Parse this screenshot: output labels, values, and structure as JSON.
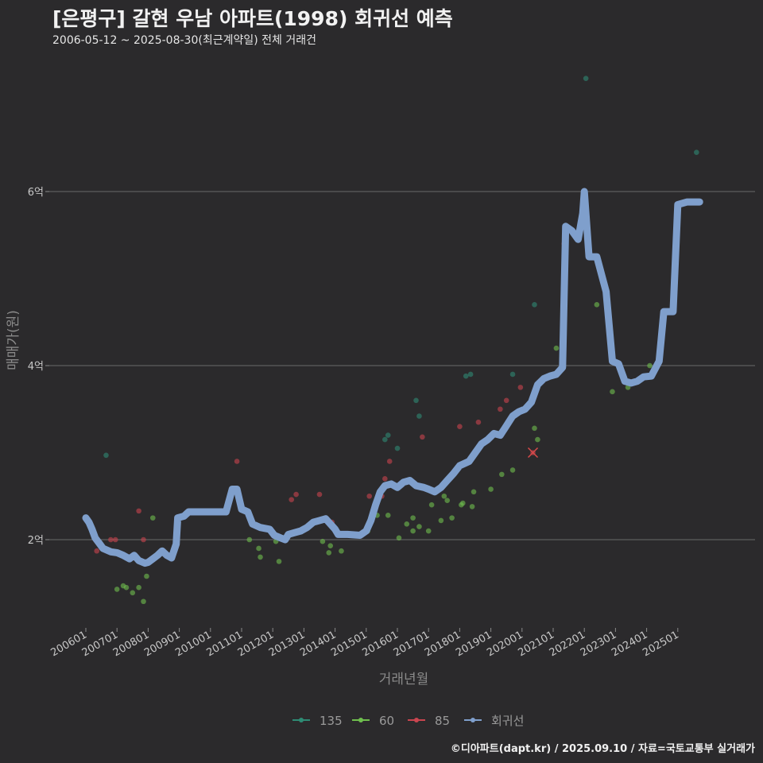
{
  "header": {
    "title": "[은평구] 갈현 우남 아파트(1998) 회귀선 예측",
    "subtitle": "2006-05-12 ~ 2025-08-30(최근계약일) 전체 거래건"
  },
  "footer": {
    "caption": "©디아파트(dapt.kr) / 2025.09.10 / 자료=국토교통부 실거래가"
  },
  "colors": {
    "background": "#2b2a2c",
    "grid": "#6a6a6a",
    "series_135": "#2e8b74",
    "series_60": "#6fbf4e",
    "series_85": "#c9454f",
    "regression": "#7f9fcc"
  },
  "chart_data": {
    "type": "scatter",
    "title": "[은평구] 갈현 우남 아파트(1998) 회귀선 예측",
    "subtitle": "2006-05-12 ~ 2025-08-30(최근계약일) 전체 거래건",
    "xlabel": "거래년월",
    "ylabel": "매매가(원)",
    "x_ticks": [
      "200601",
      "200701",
      "200801",
      "200901",
      "201001",
      "201101",
      "201201",
      "201301",
      "201401",
      "201501",
      "201601",
      "201701",
      "201801",
      "201901",
      "202001",
      "202101",
      "202201",
      "202301",
      "202401",
      "202501"
    ],
    "y_ticks": [
      {
        "value": 2,
        "label": "2억"
      },
      {
        "value": 4,
        "label": "4억"
      },
      {
        "value": 6,
        "label": "6억"
      }
    ],
    "y_unit": "억",
    "ylim": [
      1.0,
      7.5
    ],
    "grid": true,
    "legend_position": "bottom",
    "legend": [
      "135",
      "60",
      "85",
      "회귀선"
    ],
    "series": [
      {
        "name": "135",
        "points": [
          [
            2006.65,
            2.97
          ],
          [
            2015.6,
            3.15
          ],
          [
            2015.7,
            3.2
          ],
          [
            2016.0,
            3.05
          ],
          [
            2016.6,
            3.6
          ],
          [
            2016.7,
            3.42
          ],
          [
            2018.2,
            3.88
          ],
          [
            2018.35,
            3.9
          ],
          [
            2019.7,
            3.9
          ],
          [
            2020.4,
            4.7
          ],
          [
            2022.05,
            7.3
          ],
          [
            2025.6,
            6.45
          ]
        ]
      },
      {
        "name": "60",
        "points": [
          [
            2007.0,
            1.43
          ],
          [
            2007.2,
            1.47
          ],
          [
            2007.3,
            1.45
          ],
          [
            2007.5,
            1.39
          ],
          [
            2007.7,
            1.45
          ],
          [
            2007.85,
            1.29
          ],
          [
            2007.95,
            1.58
          ],
          [
            2008.15,
            2.25
          ],
          [
            2008.25,
            1.82
          ],
          [
            2011.25,
            2.0
          ],
          [
            2011.55,
            1.9
          ],
          [
            2011.6,
            1.8
          ],
          [
            2012.1,
            1.98
          ],
          [
            2012.2,
            1.75
          ],
          [
            2013.6,
            1.98
          ],
          [
            2013.8,
            1.85
          ],
          [
            2013.85,
            1.93
          ],
          [
            2014.2,
            1.87
          ],
          [
            2015.05,
            2.1
          ],
          [
            2015.35,
            2.28
          ],
          [
            2015.7,
            2.28
          ],
          [
            2016.05,
            2.02
          ],
          [
            2016.3,
            2.18
          ],
          [
            2016.5,
            2.25
          ],
          [
            2016.5,
            2.1
          ],
          [
            2016.7,
            2.15
          ],
          [
            2017.0,
            2.1
          ],
          [
            2017.1,
            2.4
          ],
          [
            2017.4,
            2.22
          ],
          [
            2017.5,
            2.5
          ],
          [
            2017.6,
            2.45
          ],
          [
            2017.75,
            2.25
          ],
          [
            2018.05,
            2.4
          ],
          [
            2018.1,
            2.42
          ],
          [
            2018.4,
            2.38
          ],
          [
            2018.45,
            2.55
          ],
          [
            2019.0,
            2.58
          ],
          [
            2019.35,
            2.75
          ],
          [
            2019.7,
            2.8
          ],
          [
            2020.4,
            3.28
          ],
          [
            2020.5,
            3.15
          ],
          [
            2021.1,
            4.2
          ],
          [
            2022.4,
            4.7
          ],
          [
            2022.9,
            3.7
          ],
          [
            2023.4,
            3.75
          ],
          [
            2024.1,
            4.0
          ]
        ]
      },
      {
        "name": "85",
        "points": [
          [
            2006.35,
            1.87
          ],
          [
            2006.8,
            2.0
          ],
          [
            2006.95,
            2.0
          ],
          [
            2007.7,
            2.33
          ],
          [
            2007.85,
            2.0
          ],
          [
            2010.85,
            2.9
          ],
          [
            2012.6,
            2.46
          ],
          [
            2012.75,
            2.52
          ],
          [
            2013.5,
            2.52
          ],
          [
            2013.9,
            2.2
          ],
          [
            2015.1,
            2.5
          ],
          [
            2015.5,
            2.5
          ],
          [
            2015.6,
            2.7
          ],
          [
            2015.75,
            2.9
          ],
          [
            2016.8,
            3.18
          ],
          [
            2018.0,
            3.3
          ],
          [
            2018.6,
            3.35
          ],
          [
            2019.3,
            3.5
          ],
          [
            2019.5,
            3.6
          ],
          [
            2019.95,
            3.75
          ],
          [
            2020.35,
            3.0
          ],
          [
            2021.35,
            5.4
          ],
          [
            2024.95,
            5.3
          ]
        ]
      },
      {
        "name": "회귀선",
        "points": [
          [
            2006.0,
            2.25
          ],
          [
            2006.1,
            2.2
          ],
          [
            2006.2,
            2.12
          ],
          [
            2006.3,
            2.02
          ],
          [
            2006.45,
            1.95
          ],
          [
            2006.55,
            1.9
          ],
          [
            2006.8,
            1.86
          ],
          [
            2007.0,
            1.85
          ],
          [
            2007.2,
            1.82
          ],
          [
            2007.4,
            1.78
          ],
          [
            2007.55,
            1.82
          ],
          [
            2007.7,
            1.76
          ],
          [
            2007.9,
            1.73
          ],
          [
            2008.0,
            1.74
          ],
          [
            2008.15,
            1.78
          ],
          [
            2008.3,
            1.82
          ],
          [
            2008.45,
            1.87
          ],
          [
            2008.6,
            1.82
          ],
          [
            2008.75,
            1.79
          ],
          [
            2008.9,
            1.95
          ],
          [
            2008.95,
            2.25
          ],
          [
            2009.15,
            2.27
          ],
          [
            2009.3,
            2.32
          ],
          [
            2009.6,
            2.32
          ],
          [
            2010.0,
            2.32
          ],
          [
            2010.5,
            2.32
          ],
          [
            2010.7,
            2.58
          ],
          [
            2010.85,
            2.58
          ],
          [
            2011.0,
            2.35
          ],
          [
            2011.2,
            2.32
          ],
          [
            2011.35,
            2.18
          ],
          [
            2011.6,
            2.14
          ],
          [
            2011.9,
            2.12
          ],
          [
            2012.05,
            2.05
          ],
          [
            2012.25,
            2.02
          ],
          [
            2012.4,
            2.0
          ],
          [
            2012.5,
            2.06
          ],
          [
            2012.7,
            2.08
          ],
          [
            2012.9,
            2.1
          ],
          [
            2013.1,
            2.14
          ],
          [
            2013.3,
            2.2
          ],
          [
            2013.5,
            2.22
          ],
          [
            2013.7,
            2.24
          ],
          [
            2014.0,
            2.12
          ],
          [
            2014.1,
            2.06
          ],
          [
            2014.4,
            2.06
          ],
          [
            2014.8,
            2.05
          ],
          [
            2015.0,
            2.1
          ],
          [
            2015.15,
            2.22
          ],
          [
            2015.3,
            2.4
          ],
          [
            2015.45,
            2.55
          ],
          [
            2015.6,
            2.62
          ],
          [
            2015.8,
            2.64
          ],
          [
            2016.0,
            2.6
          ],
          [
            2016.2,
            2.66
          ],
          [
            2016.4,
            2.68
          ],
          [
            2016.6,
            2.62
          ],
          [
            2016.85,
            2.6
          ],
          [
            2017.0,
            2.58
          ],
          [
            2017.2,
            2.55
          ],
          [
            2017.4,
            2.6
          ],
          [
            2017.6,
            2.68
          ],
          [
            2017.8,
            2.76
          ],
          [
            2018.0,
            2.85
          ],
          [
            2018.3,
            2.9
          ],
          [
            2018.5,
            3.0
          ],
          [
            2018.7,
            3.1
          ],
          [
            2018.9,
            3.15
          ],
          [
            2019.1,
            3.22
          ],
          [
            2019.3,
            3.2
          ],
          [
            2019.45,
            3.28
          ],
          [
            2019.7,
            3.42
          ],
          [
            2019.9,
            3.47
          ],
          [
            2020.1,
            3.5
          ],
          [
            2020.3,
            3.58
          ],
          [
            2020.5,
            3.78
          ],
          [
            2020.7,
            3.85
          ],
          [
            2020.9,
            3.88
          ],
          [
            2021.1,
            3.9
          ],
          [
            2021.3,
            3.98
          ],
          [
            2021.4,
            5.6
          ],
          [
            2021.6,
            5.55
          ],
          [
            2021.8,
            5.45
          ],
          [
            2021.95,
            5.75
          ],
          [
            2022.0,
            6.0
          ],
          [
            2022.15,
            5.25
          ],
          [
            2022.4,
            5.25
          ],
          [
            2022.7,
            4.85
          ],
          [
            2022.9,
            4.05
          ],
          [
            2023.1,
            4.02
          ],
          [
            2023.3,
            3.82
          ],
          [
            2023.5,
            3.8
          ],
          [
            2023.7,
            3.82
          ],
          [
            2023.9,
            3.87
          ],
          [
            2024.15,
            3.88
          ],
          [
            2024.4,
            4.05
          ],
          [
            2024.55,
            4.62
          ],
          [
            2024.85,
            4.62
          ],
          [
            2025.0,
            5.85
          ],
          [
            2025.3,
            5.88
          ],
          [
            2025.7,
            5.88
          ]
        ]
      }
    ]
  }
}
